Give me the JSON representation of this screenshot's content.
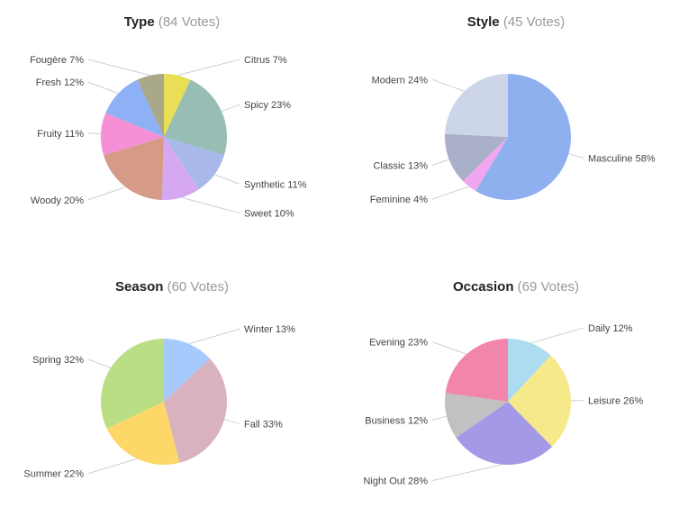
{
  "chart_data": [
    {
      "type": "pie",
      "title": "Type",
      "subtitle": "(84 Votes)",
      "slices": [
        {
          "label": "Citrus",
          "value": 7,
          "color": "#e8df55"
        },
        {
          "label": "Spicy",
          "value": 23,
          "color": "#97bdb5"
        },
        {
          "label": "Synthetic",
          "value": 11,
          "color": "#a8b9ea"
        },
        {
          "label": "Sweet",
          "value": 10,
          "color": "#d7a8f2"
        },
        {
          "label": "Woody",
          "value": 20,
          "color": "#d59b87"
        },
        {
          "label": "Fruity",
          "value": 11,
          "color": "#f58fd6"
        },
        {
          "label": "Fresh",
          "value": 12,
          "color": "#8db1f4"
        },
        {
          "label": "Fougère",
          "value": 7,
          "color": "#a9a889"
        }
      ]
    },
    {
      "type": "pie",
      "title": "Style",
      "subtitle": "(45 Votes)",
      "slices": [
        {
          "label": "Masculine",
          "value": 58,
          "color": "#8eb0ee"
        },
        {
          "label": "Feminine",
          "value": 4,
          "color": "#f2a6ef"
        },
        {
          "label": "Classic",
          "value": 13,
          "color": "#a9b0c8"
        },
        {
          "label": "Modern",
          "value": 24,
          "color": "#ccd6e8"
        }
      ]
    },
    {
      "type": "pie",
      "title": "Season",
      "subtitle": "(60 Votes)",
      "slices": [
        {
          "label": "Winter",
          "value": 13,
          "color": "#a6cafb"
        },
        {
          "label": "Fall",
          "value": 33,
          "color": "#d9b2bf"
        },
        {
          "label": "Summer",
          "value": 22,
          "color": "#fdd767"
        },
        {
          "label": "Spring",
          "value": 32,
          "color": "#bade84"
        }
      ]
    },
    {
      "type": "pie",
      "title": "Occasion",
      "subtitle": "(69 Votes)",
      "slices": [
        {
          "label": "Daily",
          "value": 12,
          "color": "#addcf0"
        },
        {
          "label": "Leisure",
          "value": 26,
          "color": "#f6e98a"
        },
        {
          "label": "Night Out",
          "value": 28,
          "color": "#a399e6"
        },
        {
          "label": "Business",
          "value": 12,
          "color": "#c1c1c1"
        },
        {
          "label": "Evening",
          "value": 23,
          "color": "#f285ab"
        }
      ]
    }
  ]
}
